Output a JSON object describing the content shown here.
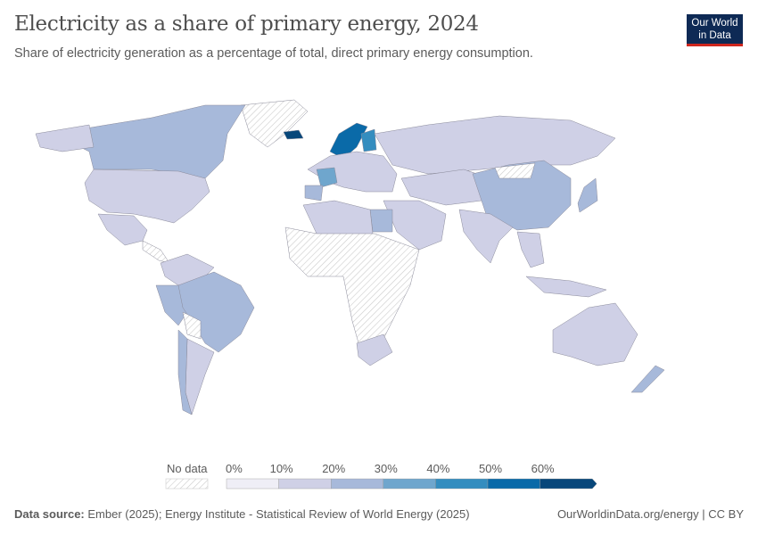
{
  "header": {
    "title": "Electricity as a share of primary energy, 2024",
    "subtitle": "Share of electricity generation as a percentage of total, direct primary energy consumption.",
    "logo_line1": "Our World",
    "logo_line2": "in Data"
  },
  "legend": {
    "no_data": "No data",
    "ticks": [
      "0%",
      "10%",
      "20%",
      "30%",
      "40%",
      "50%",
      "60%"
    ],
    "bins": [
      {
        "range": "0-10%",
        "color": "#efeef6"
      },
      {
        "range": "10-20%",
        "color": "#cfd0e6"
      },
      {
        "range": "20-30%",
        "color": "#a7b9da"
      },
      {
        "range": "30-40%",
        "color": "#6fa6cd"
      },
      {
        "range": "40-50%",
        "color": "#348dbf"
      },
      {
        "range": "50-60%",
        "color": "#0a6aa8"
      },
      {
        "range": ">60%",
        "color": "#08477a"
      }
    ]
  },
  "footer": {
    "source_label": "Data source:",
    "source": "Ember (2025); Energy Institute - Statistical Review of World Energy (2025)",
    "link": "OurWorldinData.org/energy | CC BY"
  }
}
